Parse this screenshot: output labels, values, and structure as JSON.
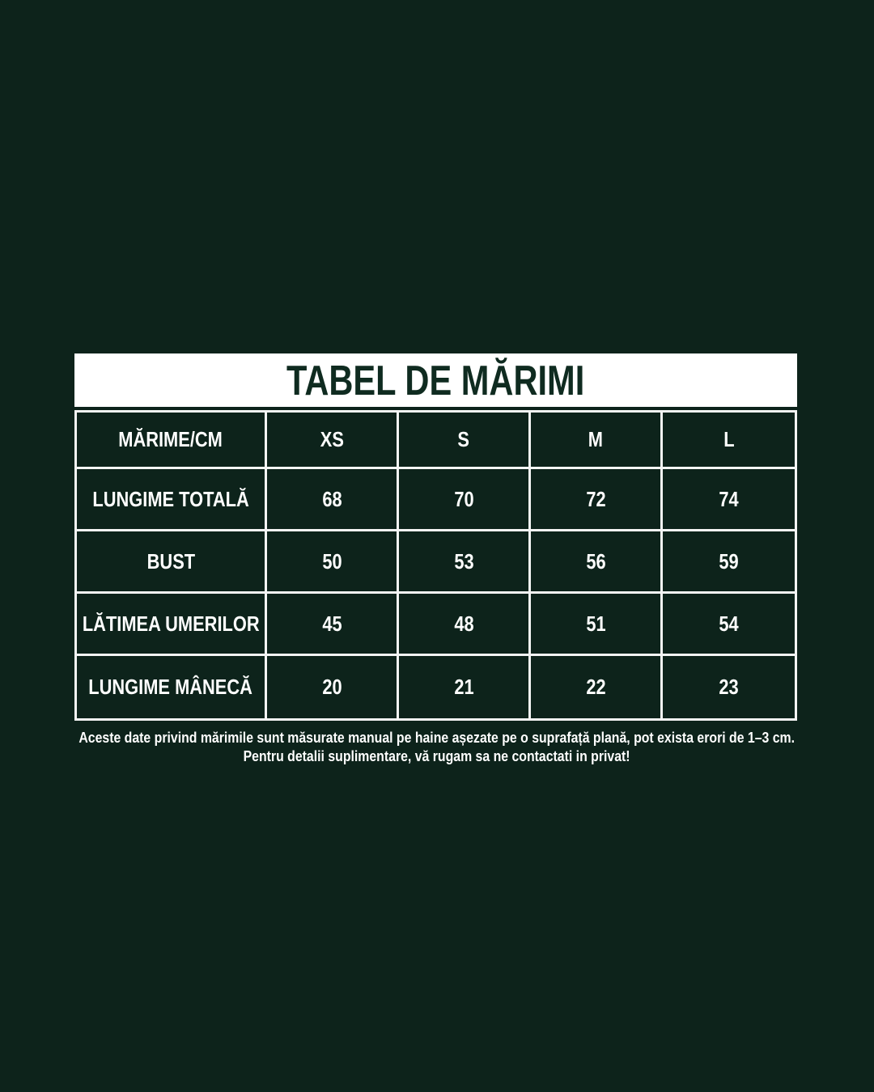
{
  "title": "TABEL DE MĂRIMI",
  "chart_data": {
    "type": "table",
    "title": "TABEL DE MĂRIMI",
    "unit": "CM",
    "columns": [
      "MĂRIME/CM",
      "XS",
      "S",
      "M",
      "L"
    ],
    "rows": [
      {
        "label": "LUNGIME TOTALĂ",
        "values": [
          68,
          70,
          72,
          74
        ]
      },
      {
        "label": "BUST",
        "values": [
          50,
          53,
          56,
          59
        ]
      },
      {
        "label": "LĂTIMEA UMERILOR",
        "values": [
          45,
          48,
          51,
          54
        ]
      },
      {
        "label": "LUNGIME MÂNECĂ",
        "values": [
          20,
          21,
          22,
          23
        ]
      }
    ]
  },
  "footnote": {
    "line1": "Aceste date privind mărimile sunt măsurate manual pe haine așezate pe o suprafață plană, pot exista erori de 1–3 cm.",
    "line2": "Pentru detalii suplimentare, vă rugam sa ne contactati in privat!"
  },
  "colors": {
    "bg": "#0d231b",
    "title-text": "#0f2b20",
    "bar-bg": "#ffffff",
    "border": "#f4f5f4",
    "cell-text": "#ffffff"
  }
}
